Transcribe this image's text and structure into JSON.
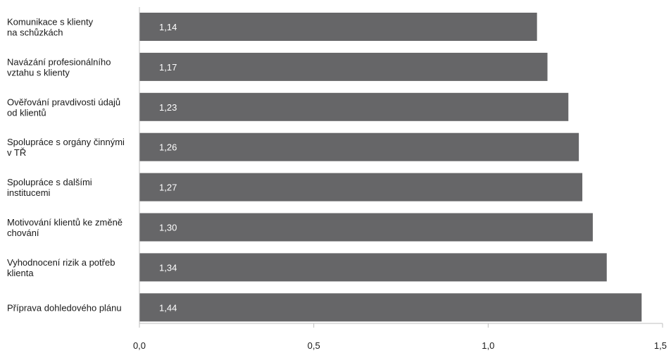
{
  "chart_data": {
    "type": "bar",
    "orientation": "horizontal",
    "categories": [
      [
        "Komunikace s klienty",
        "na schůzkách"
      ],
      [
        "Navázání profesionálního",
        "vztahu s klienty"
      ],
      [
        "Ověřování pravdivosti údajů",
        "od klientů"
      ],
      [
        "Spolupráce s orgány činnými",
        "v TŘ"
      ],
      [
        "Spolupráce s dalšími",
        "institucemi"
      ],
      [
        "Motivování klientů ke změně",
        "chování"
      ],
      [
        "Vyhodnocení rizik a potřeb",
        "klienta"
      ],
      [
        "Příprava dohledového plánu"
      ]
    ],
    "values": [
      1.14,
      1.17,
      1.23,
      1.26,
      1.27,
      1.3,
      1.34,
      1.44
    ],
    "value_labels": [
      "1,14",
      "1,17",
      "1,23",
      "1,26",
      "1,27",
      "1,30",
      "1,34",
      "1,44"
    ],
    "xlim": [
      0,
      1.5
    ],
    "xticks": [
      0,
      0.5,
      1.0,
      1.5
    ],
    "xtick_labels": [
      "0,0",
      "0,5",
      "1,0",
      "1,5"
    ],
    "title": "",
    "xlabel": "",
    "ylabel": "",
    "grid": false,
    "legend": "none",
    "bar_color": "#666668",
    "value_label_color": "#ffffff"
  }
}
